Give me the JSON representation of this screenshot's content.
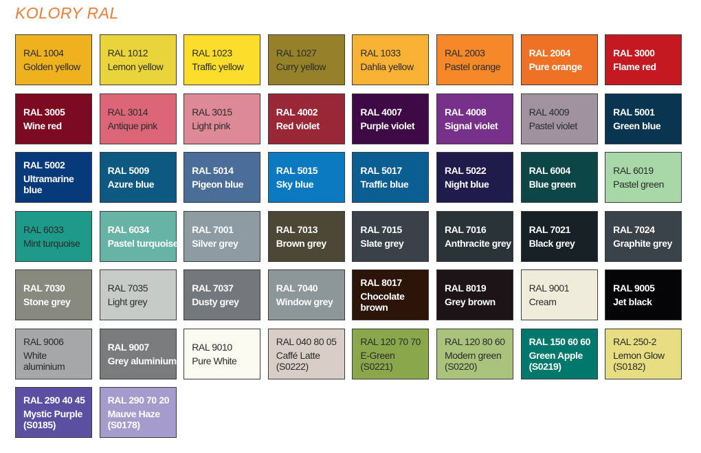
{
  "title": "KOLORY RAL",
  "swatches": [
    {
      "lines": [
        "RAL 1004",
        "Golden yellow"
      ],
      "color": "#eeb21f",
      "text": "#2a2a2a"
    },
    {
      "lines": [
        "RAL 1012",
        "Lemon yellow"
      ],
      "color": "#e9d53b",
      "text": "#2a2a2a"
    },
    {
      "lines": [
        "RAL 1023",
        "Traffic yellow"
      ],
      "color": "#fcdd2c",
      "text": "#2a2a2a"
    },
    {
      "lines": [
        "RAL 1027",
        "Curry yellow"
      ],
      "color": "#958228",
      "text": "#2a2a2a"
    },
    {
      "lines": [
        "RAL 1033",
        "Dahlia yellow"
      ],
      "color": "#f9b233",
      "text": "#2a2a2a"
    },
    {
      "lines": [
        "RAL 2003",
        "Pastel orange"
      ],
      "color": "#f5892a",
      "text": "#2a2a2a"
    },
    {
      "lines": [
        "RAL 2004",
        "Pure orange"
      ],
      "color": "#ee7125",
      "text": "#ffffff"
    },
    {
      "lines": [
        "RAL 3000",
        "Flame red"
      ],
      "color": "#c41920",
      "text": "#ffffff"
    },
    {
      "lines": [
        "RAL 3005",
        "Wine red"
      ],
      "color": "#7c0b22",
      "text": "#ffffff"
    },
    {
      "lines": [
        "RAL 3014",
        "Antique pink"
      ],
      "color": "#da6677",
      "text": "#2a2a2a"
    },
    {
      "lines": [
        "RAL 3015",
        "Light pink"
      ],
      "color": "#de8a96",
      "text": "#2a2a2a"
    },
    {
      "lines": [
        "RAL 4002",
        "Red violet"
      ],
      "color": "#9a2735",
      "text": "#ffffff"
    },
    {
      "lines": [
        "RAL 4007",
        "Purple violet"
      ],
      "color": "#3d0a45",
      "text": "#ffffff"
    },
    {
      "lines": [
        "RAL 4008",
        "Signal violet"
      ],
      "color": "#773189",
      "text": "#ffffff"
    },
    {
      "lines": [
        "RAL 4009",
        "Pastel violet"
      ],
      "color": "#a0929f",
      "text": "#2a2a2a"
    },
    {
      "lines": [
        "RAL 5001",
        "Green blue"
      ],
      "color": "#093551",
      "text": "#ffffff"
    },
    {
      "lines": [
        "RAL 5002",
        "Ultramarine",
        "blue"
      ],
      "color": "#073a7b",
      "text": "#ffffff"
    },
    {
      "lines": [
        "RAL 5009",
        "Azure blue"
      ],
      "color": "#0d5981",
      "text": "#ffffff"
    },
    {
      "lines": [
        "RAL 5014",
        "Pigeon blue"
      ],
      "color": "#4a6e97",
      "text": "#ffffff"
    },
    {
      "lines": [
        "RAL 5015",
        "Sky blue"
      ],
      "color": "#0a79c0",
      "text": "#ffffff"
    },
    {
      "lines": [
        "RAL 5017",
        "Traffic blue"
      ],
      "color": "#0b5e92",
      "text": "#ffffff"
    },
    {
      "lines": [
        "RAL 5022",
        "Night blue"
      ],
      "color": "#1f1c4c",
      "text": "#ffffff"
    },
    {
      "lines": [
        "RAL 6004",
        "Blue green"
      ],
      "color": "#0c4646",
      "text": "#ffffff"
    },
    {
      "lines": [
        "RAL 6019",
        "Pastel green"
      ],
      "color": "#a8d8a8",
      "text": "#2a2a2a"
    },
    {
      "lines": [
        "RAL 6033",
        "Mint turquoise"
      ],
      "color": "#1e9a8a",
      "text": "#2a2a2a"
    },
    {
      "lines": [
        "RAL 6034",
        "Pastel turquoise"
      ],
      "color": "#67b4a6",
      "text": "#ffffff"
    },
    {
      "lines": [
        "RAL 7001",
        "Silver grey"
      ],
      "color": "#8d9ba3",
      "text": "#ffffff"
    },
    {
      "lines": [
        "RAL 7013",
        "Brown grey"
      ],
      "color": "#4c4835",
      "text": "#ffffff"
    },
    {
      "lines": [
        "RAL 7015",
        "Slate grey"
      ],
      "color": "#3a4149",
      "text": "#ffffff"
    },
    {
      "lines": [
        "RAL 7016",
        "Anthracite grey"
      ],
      "color": "#293338",
      "text": "#ffffff"
    },
    {
      "lines": [
        "RAL 7021",
        "Black grey"
      ],
      "color": "#172126",
      "text": "#ffffff"
    },
    {
      "lines": [
        "RAL 7024",
        "Graphite grey"
      ],
      "color": "#3a434a",
      "text": "#ffffff"
    },
    {
      "lines": [
        "RAL 7030",
        "Stone grey"
      ],
      "color": "#888a80",
      "text": "#ffffff"
    },
    {
      "lines": [
        "RAL 7035",
        "Light grey"
      ],
      "color": "#c6cbc7",
      "text": "#2a2a2a"
    },
    {
      "lines": [
        "RAL 7037",
        "Dusty grey"
      ],
      "color": "#72787b",
      "text": "#ffffff"
    },
    {
      "lines": [
        "RAL 7040",
        "Window grey"
      ],
      "color": "#8d9699",
      "text": "#ffffff"
    },
    {
      "lines": [
        "RAL 8017",
        "Chocolate",
        "brown"
      ],
      "color": "#2c1409",
      "text": "#ffffff"
    },
    {
      "lines": [
        "RAL 8019",
        "Grey brown"
      ],
      "color": "#1c1416",
      "text": "#ffffff"
    },
    {
      "lines": [
        "RAL 9001",
        "Cream"
      ],
      "color": "#f0ecdb",
      "text": "#2a2a2a"
    },
    {
      "lines": [
        "RAL 9005",
        "Jet black"
      ],
      "color": "#050507",
      "text": "#ffffff"
    },
    {
      "lines": [
        "RAL 9006",
        "White",
        "aluminium"
      ],
      "color": "#a5a7a9",
      "text": "#2a2a2a"
    },
    {
      "lines": [
        "RAL 9007",
        "Grey aluminium"
      ],
      "color": "#7a7b7c",
      "text": "#ffffff"
    },
    {
      "lines": [
        "RAL 9010",
        "Pure White"
      ],
      "color": "#fbfaf0",
      "text": "#2a2a2a"
    },
    {
      "lines": [
        "RAL 040 80 05",
        "Caffé Latte",
        "(S0222)"
      ],
      "color": "#d9cdc7",
      "text": "#2a2a2a"
    },
    {
      "lines": [
        "RAL 120 70 70",
        "E-Green",
        "(S0221)"
      ],
      "color": "#8aa84b",
      "text": "#2a2a2a"
    },
    {
      "lines": [
        "RAL 120 80 60",
        "Modern green",
        "(S0220)"
      ],
      "color": "#a9c27c",
      "text": "#2a2a2a"
    },
    {
      "lines": [
        "RAL 150 60 60",
        "Green Apple",
        "(S0219)"
      ],
      "color": "#00786c",
      "text": "#ffffff"
    },
    {
      "lines": [
        "RAL 250-2",
        "Lemon Glow",
        "(S0182)"
      ],
      "color": "#e7dd82",
      "text": "#2a2a2a"
    },
    {
      "lines": [
        "RAL 290 40 45",
        "Mystic Purple",
        "(S0185)"
      ],
      "color": "#5a4fa1",
      "text": "#ffffff"
    },
    {
      "lines": [
        "RAL 290 70 20",
        "Mauve Haze",
        "(S0178)"
      ],
      "color": "#a59ccb",
      "text": "#ffffff"
    }
  ]
}
